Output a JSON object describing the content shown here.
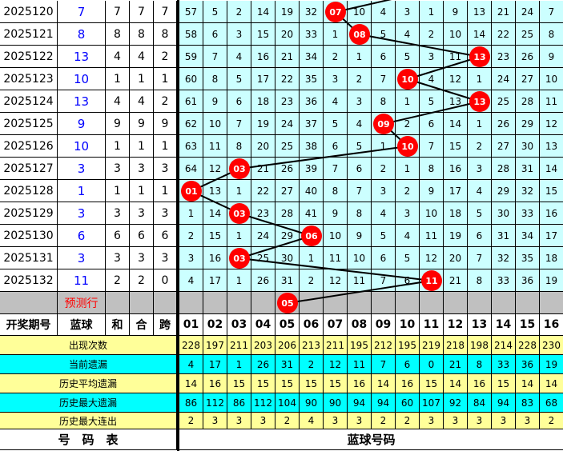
{
  "colors": {
    "grid_bg": "#ccffff",
    "ball": "#ff0000",
    "blue_text": "#0000ff",
    "stats_yellow": "#ffff99",
    "stats_cyan": "#00ffff",
    "predict_bg": "#c0c0c0"
  },
  "rows": [
    {
      "period": "2025120",
      "blue": "7",
      "he": "7",
      "hesum": "7",
      "kua": "7",
      "cells": [
        "57",
        "5",
        "2",
        "14",
        "19",
        "32",
        "07",
        "10",
        "4",
        "3",
        "1",
        "9",
        "13",
        "21",
        "24",
        "7"
      ],
      "hit": 7
    },
    {
      "period": "2025121",
      "blue": "8",
      "he": "8",
      "hesum": "8",
      "kua": "8",
      "cells": [
        "58",
        "6",
        "3",
        "15",
        "20",
        "33",
        "1",
        "08",
        "5",
        "4",
        "2",
        "10",
        "14",
        "22",
        "25",
        "8"
      ],
      "hit": 8
    },
    {
      "period": "2025122",
      "blue": "13",
      "he": "4",
      "hesum": "4",
      "kua": "2",
      "cells": [
        "59",
        "7",
        "4",
        "16",
        "21",
        "34",
        "2",
        "1",
        "6",
        "5",
        "3",
        "11",
        "13",
        "23",
        "26",
        "9"
      ],
      "hit": 13
    },
    {
      "period": "2025123",
      "blue": "10",
      "he": "1",
      "hesum": "1",
      "kua": "1",
      "cells": [
        "60",
        "8",
        "5",
        "17",
        "22",
        "35",
        "3",
        "2",
        "7",
        "10",
        "4",
        "12",
        "1",
        "24",
        "27",
        "10"
      ],
      "hit": 10
    },
    {
      "period": "2025124",
      "blue": "13",
      "he": "4",
      "hesum": "4",
      "kua": "2",
      "cells": [
        "61",
        "9",
        "6",
        "18",
        "23",
        "36",
        "4",
        "3",
        "8",
        "1",
        "5",
        "13",
        "13",
        "25",
        "28",
        "11"
      ],
      "hit": 13
    },
    {
      "period": "2025125",
      "blue": "9",
      "he": "9",
      "hesum": "9",
      "kua": "9",
      "cells": [
        "62",
        "10",
        "7",
        "19",
        "24",
        "37",
        "5",
        "4",
        "09",
        "2",
        "6",
        "14",
        "1",
        "26",
        "29",
        "12"
      ],
      "hit": 9
    },
    {
      "period": "2025126",
      "blue": "10",
      "he": "1",
      "hesum": "1",
      "kua": "1",
      "cells": [
        "63",
        "11",
        "8",
        "20",
        "25",
        "38",
        "6",
        "5",
        "1",
        "10",
        "7",
        "15",
        "2",
        "27",
        "30",
        "13"
      ],
      "hit": 10
    },
    {
      "period": "2025127",
      "blue": "3",
      "he": "3",
      "hesum": "3",
      "kua": "3",
      "cells": [
        "64",
        "12",
        "03",
        "21",
        "26",
        "39",
        "7",
        "6",
        "2",
        "1",
        "8",
        "16",
        "3",
        "28",
        "31",
        "14"
      ],
      "hit": 3
    },
    {
      "period": "2025128",
      "blue": "1",
      "he": "1",
      "hesum": "1",
      "kua": "1",
      "cells": [
        "01",
        "13",
        "1",
        "22",
        "27",
        "40",
        "8",
        "7",
        "3",
        "2",
        "9",
        "17",
        "4",
        "29",
        "32",
        "15"
      ],
      "hit": 1
    },
    {
      "period": "2025129",
      "blue": "3",
      "he": "3",
      "hesum": "3",
      "kua": "3",
      "cells": [
        "1",
        "14",
        "03",
        "23",
        "28",
        "41",
        "9",
        "8",
        "4",
        "3",
        "10",
        "18",
        "5",
        "30",
        "33",
        "16"
      ],
      "hit": 3
    },
    {
      "period": "2025130",
      "blue": "6",
      "he": "6",
      "hesum": "6",
      "kua": "6",
      "cells": [
        "2",
        "15",
        "1",
        "24",
        "29",
        "06",
        "10",
        "9",
        "5",
        "4",
        "11",
        "19",
        "6",
        "31",
        "34",
        "17"
      ],
      "hit": 6
    },
    {
      "period": "2025131",
      "blue": "3",
      "he": "3",
      "hesum": "3",
      "kua": "3",
      "cells": [
        "3",
        "16",
        "03",
        "25",
        "30",
        "1",
        "11",
        "10",
        "6",
        "5",
        "12",
        "20",
        "7",
        "32",
        "35",
        "18"
      ],
      "hit": 3
    },
    {
      "period": "2025132",
      "blue": "11",
      "he": "2",
      "hesum": "2",
      "kua": "0",
      "cells": [
        "4",
        "17",
        "1",
        "26",
        "31",
        "2",
        "12",
        "11",
        "7",
        "6",
        "11",
        "21",
        "8",
        "33",
        "36",
        "19"
      ],
      "hit": 11
    }
  ],
  "prediction": {
    "label": "预测行",
    "number": "05",
    "hit": 5
  },
  "header": {
    "period": "开奖期号",
    "blue": "蓝球",
    "he": "和",
    "hesum": "合",
    "kua": "跨",
    "numbers": [
      "01",
      "02",
      "03",
      "04",
      "05",
      "06",
      "07",
      "08",
      "09",
      "10",
      "11",
      "12",
      "13",
      "14",
      "15",
      "16"
    ]
  },
  "stats": [
    {
      "label": "出现次数",
      "style": "y",
      "values": [
        "228",
        "197",
        "211",
        "203",
        "206",
        "213",
        "211",
        "195",
        "212",
        "195",
        "219",
        "218",
        "198",
        "214",
        "228",
        "230"
      ]
    },
    {
      "label": "当前遗漏",
      "style": "cy",
      "values": [
        "4",
        "17",
        "1",
        "26",
        "31",
        "2",
        "12",
        "11",
        "7",
        "6",
        "0",
        "21",
        "8",
        "33",
        "36",
        "19"
      ]
    },
    {
      "label": "历史平均遗漏",
      "style": "y",
      "values": [
        "14",
        "16",
        "15",
        "15",
        "15",
        "15",
        "15",
        "16",
        "14",
        "16",
        "15",
        "14",
        "16",
        "15",
        "14",
        "14"
      ]
    },
    {
      "label": "历史最大遗漏",
      "style": "cy",
      "values": [
        "86",
        "112",
        "86",
        "112",
        "104",
        "90",
        "90",
        "94",
        "94",
        "60",
        "107",
        "92",
        "84",
        "94",
        "83",
        "68"
      ]
    },
    {
      "label": "历史最大连出",
      "style": "y",
      "values": [
        "2",
        "3",
        "3",
        "3",
        "2",
        "4",
        "3",
        "3",
        "2",
        "2",
        "3",
        "3",
        "3",
        "3",
        "3",
        "2"
      ]
    }
  ],
  "footer": {
    "left": "号　码　表",
    "right": "蓝球号码"
  }
}
